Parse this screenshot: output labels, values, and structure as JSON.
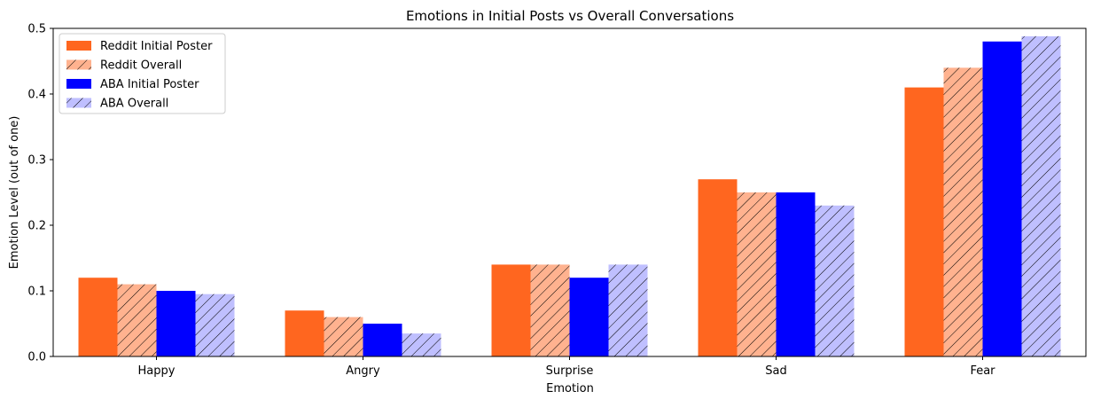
{
  "chart_data": {
    "type": "bar",
    "title": "Emotions in Initial Posts vs Overall Conversations",
    "xlabel": "Emotion",
    "ylabel": "Emotion Level (out of one)",
    "ylim": [
      0,
      0.5
    ],
    "yticks": [
      "0.0",
      "0.1",
      "0.2",
      "0.3",
      "0.4",
      "0.5"
    ],
    "grid": false,
    "legend_position": "top-left",
    "categories": [
      "Happy",
      "Angry",
      "Surprise",
      "Sad",
      "Fear"
    ],
    "series": [
      {
        "name": "Reddit Initial Poster",
        "values": [
          0.12,
          0.07,
          0.14,
          0.27,
          0.41
        ],
        "color": "#ff661f",
        "hatch": false
      },
      {
        "name": "Reddit Overall",
        "values": [
          0.11,
          0.06,
          0.14,
          0.25,
          0.44
        ],
        "color": "#ffb28f",
        "hatch": true
      },
      {
        "name": "ABA Initial Poster",
        "values": [
          0.1,
          0.05,
          0.12,
          0.25,
          0.48
        ],
        "color": "#0000ff",
        "hatch": false
      },
      {
        "name": "ABA Overall",
        "values": [
          0.095,
          0.035,
          0.14,
          0.23,
          0.488
        ],
        "color": "#bfbfff",
        "hatch": true
      }
    ]
  }
}
